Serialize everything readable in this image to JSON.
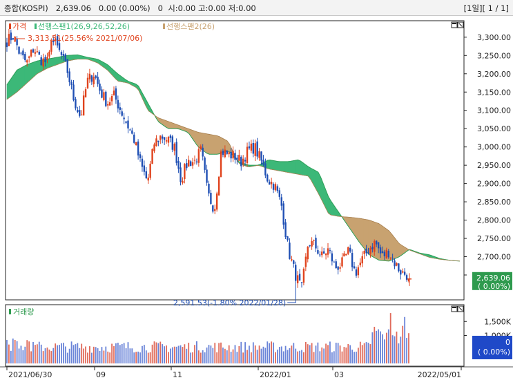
{
  "header": {
    "title": "종합(KOSPI)   2,639.06   0.00 (0.00%)   0  시:0.00 고:0.00 저:0.00",
    "page": "[1일][ 1 / 1]"
  },
  "colors": {
    "up": "#e0421c",
    "down": "#1f4fb4",
    "cloud_up": "#3cb878",
    "cloud_down": "#c8a270",
    "volume_up": "#e06a5a",
    "volume_down": "#6a84d8"
  },
  "chart_data": [
    {
      "type": "candlestick",
      "legend": [
        "가격",
        "선행스팬1(26,9,26,52,26)",
        "선행스팬2(26)"
      ],
      "x_ticks": [
        "2021/06/30",
        "09",
        "11",
        "2022/01",
        "03",
        "2022/05/01"
      ],
      "y_ticks": [
        2650,
        2700,
        2750,
        2800,
        2850,
        2900,
        2950,
        3000,
        3050,
        3100,
        3150,
        3200,
        3250,
        3300
      ],
      "y_tick_labels": [
        "2,650.00",
        "2,700.00",
        "2,750.00",
        "2,800.00",
        "2,850.00",
        "2,900.00",
        "2,950.00",
        "3,000.00",
        "3,050.00",
        "3,100.00",
        "3,150.00",
        "3,200.00",
        "3,250.00",
        "3,300.00"
      ],
      "ylim": [
        2582,
        3345
      ],
      "price_anchors": [
        3290,
        3305,
        3250,
        3230,
        3270,
        3240,
        3230,
        3290,
        3255,
        3210,
        3130,
        3080,
        3180,
        3200,
        3150,
        3120,
        3140,
        3100,
        3060,
        3020,
        2950,
        2905,
        3010,
        3030,
        3020,
        3000,
        2910,
        2960,
        2960,
        2990,
        2870,
        2830,
        2990,
        2980,
        2975,
        2960,
        2990,
        3000,
        2960,
        2910,
        2895,
        2840,
        2720,
        2655,
        2610,
        2740,
        2730,
        2700,
        2720,
        2670,
        2680,
        2715,
        2655,
        2690,
        2720,
        2740,
        2700,
        2715,
        2680,
        2655,
        2650
      ],
      "span1_anchors": [
        3170,
        3210,
        3225,
        3235,
        3240,
        3245,
        3250,
        3252,
        3245,
        3240,
        3225,
        3200,
        3180,
        3170,
        3120,
        3070,
        3050,
        3050,
        3040,
        3000,
        2980,
        2980,
        2990,
        2960,
        2950,
        2950,
        2965,
        2960,
        2960,
        2965,
        2945,
        2930,
        2860,
        2820,
        2780,
        2740,
        2705,
        2690,
        2688,
        2700,
        2720,
        2710,
        2705,
        2695,
        2690,
        2688
      ],
      "span2_anchors": [
        3130,
        3150,
        3175,
        3200,
        3215,
        3225,
        3235,
        3240,
        3240,
        3230,
        3210,
        3180,
        3175,
        3160,
        3100,
        3080,
        3070,
        3060,
        3050,
        3040,
        3035,
        3030,
        3015,
        2955,
        2945,
        2950,
        2940,
        2935,
        2930,
        2925,
        2920,
        2870,
        2815,
        2810,
        2808,
        2805,
        2800,
        2790,
        2770,
        2735,
        2718,
        2708,
        2698,
        2693,
        2690,
        2688
      ],
      "annotations": [
        {
          "text": "3,313.51(25.56% 2021/07/06)",
          "kind": "high"
        },
        {
          "text": "2,591.53(-1.80% 2022/01/28)",
          "kind": "low"
        }
      ],
      "last_price": "2,639.06",
      "last_change": "( 0.00%)"
    },
    {
      "type": "bar",
      "legend": [
        "거래량"
      ],
      "y_ticks": [
        1000,
        1500
      ],
      "y_tick_labels": [
        "1,000K",
        "1,500K"
      ],
      "ylim": [
        0,
        2000
      ],
      "last_value": "0",
      "last_change": "( 0.00%)"
    }
  ]
}
